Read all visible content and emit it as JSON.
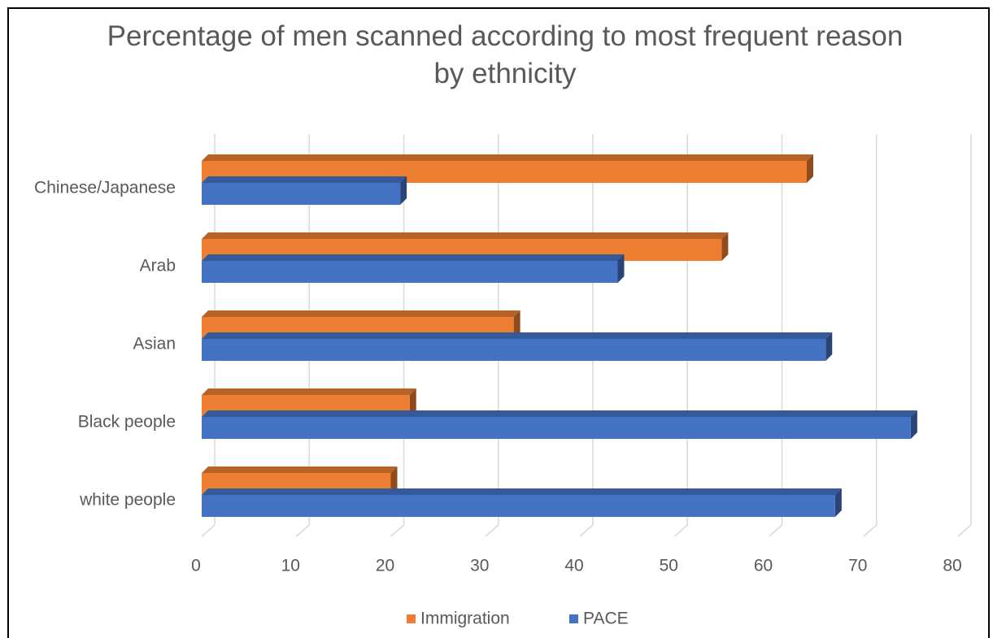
{
  "chart_data": {
    "type": "bar3d",
    "orientation": "horizontal",
    "title": "Percentage of men scanned according to most frequent reason by ethnicity",
    "categories": [
      "Chinese/Japanese",
      "Arab",
      "Asian",
      "Black people",
      "white people"
    ],
    "series": [
      {
        "name": "Immigration",
        "color": "#ed7d31",
        "values": [
          64,
          55,
          33,
          22,
          20
        ]
      },
      {
        "name": "PACE",
        "color": "#4472c4",
        "values": [
          21,
          44,
          66,
          75,
          67
        ]
      }
    ],
    "xlim": [
      0,
      80
    ],
    "xticks": [
      0,
      10,
      20,
      30,
      40,
      50,
      60,
      70,
      80
    ],
    "grid": true,
    "legend": "bottom"
  }
}
